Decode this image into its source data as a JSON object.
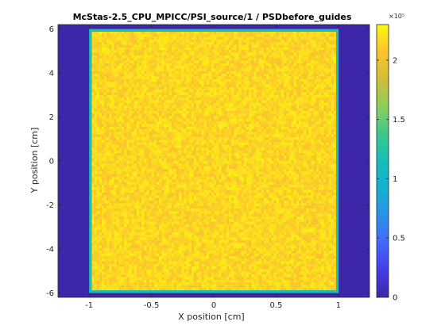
{
  "chart_data": {
    "type": "heatmap",
    "title": "McStas-2.5_CPU_MPICC/PSI_source/1 / PSDbefore_guides",
    "xlabel": "X position [cm]",
    "ylabel": "Y position [cm]",
    "xlim": [
      -1.25,
      1.25
    ],
    "ylim": [
      -6.2,
      6.2
    ],
    "x_ticks": [
      -1,
      -0.5,
      0,
      0.5,
      1
    ],
    "x_tick_labels": [
      "-1",
      "-0.5",
      "0",
      "0.5",
      "1"
    ],
    "y_ticks": [
      -6,
      -4,
      -2,
      0,
      2,
      4,
      6
    ],
    "y_tick_labels": [
      "-6",
      "-4",
      "-2",
      "0",
      "2",
      "4",
      "6"
    ],
    "colorbar": {
      "range": [
        0,
        2.3
      ],
      "ticks": [
        0,
        0.5,
        1,
        1.5,
        2
      ],
      "tick_labels": [
        "0",
        "0.5",
        "1",
        "1.5",
        "2"
      ],
      "exponent_label": "×10⁵",
      "colormap": "parula"
    },
    "region": {
      "x": [
        -1.0,
        1.0
      ],
      "y": [
        -6.0,
        6.0
      ],
      "mean_intensity": 2.15,
      "edge_intensity": 1.2,
      "noise": 0.1,
      "background_intensity": 0
    }
  },
  "colors": {
    "background": "#3e26a8",
    "edge": "#2a9ad9",
    "mid": "#f5c13a"
  }
}
